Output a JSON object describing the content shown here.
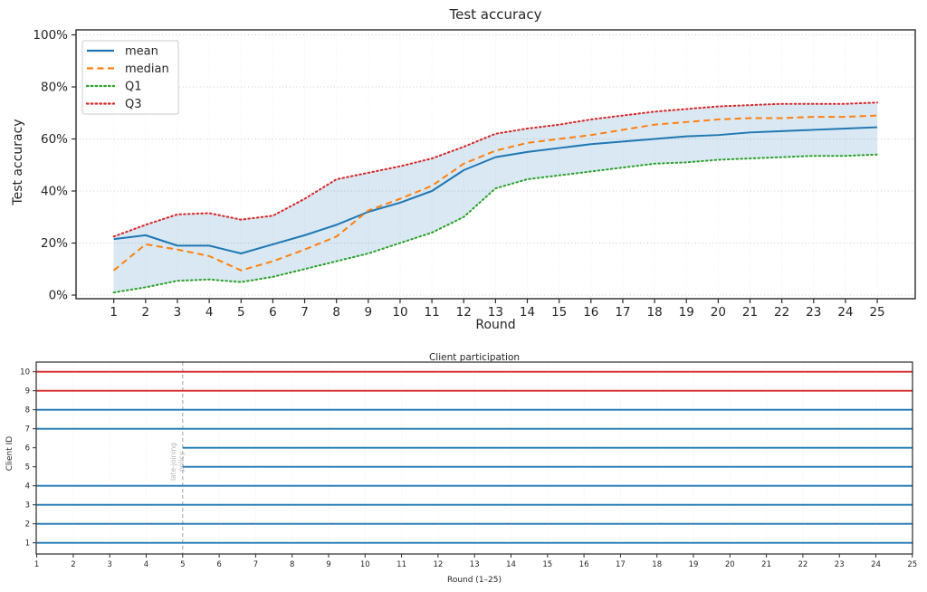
{
  "colors": {
    "mean": "#1f77b4",
    "median": "#ff7f0e",
    "q1": "#2ca02c",
    "q3": "#d62728",
    "band_fill": "#1f77b4",
    "band_opacity": 0.17,
    "client_blue": "#1f77b4",
    "client_red": "#d62728",
    "grid_h": "#c9c9c9",
    "grid_v": "#efeee1",
    "spine": "#2b2b2b",
    "vline": "#aaaaaa",
    "annotation": "#b3b3b3",
    "text": "#262626",
    "legend_border": "#cccccc",
    "legend_bg": "#ffffff"
  },
  "chart_data": [
    {
      "type": "line",
      "title": "Test accuracy",
      "xlabel": "Round",
      "ylabel": "Test accuracy",
      "xlim": [
        1,
        25
      ],
      "ylim": [
        0,
        100
      ],
      "grid": true,
      "legend_position": "upper-left",
      "x": [
        1,
        2,
        3,
        4,
        5,
        6,
        7,
        8,
        9,
        10,
        11,
        12,
        13,
        14,
        15,
        16,
        17,
        18,
        19,
        20,
        21,
        22,
        23,
        24,
        25
      ],
      "yticks": [
        {
          "value": 0,
          "label": "0%"
        },
        {
          "value": 20,
          "label": "20%"
        },
        {
          "value": 40,
          "label": "40%"
        },
        {
          "value": 60,
          "label": "60%"
        },
        {
          "value": 80,
          "label": "80%"
        },
        {
          "value": 100,
          "label": "100%"
        }
      ],
      "band": {
        "upper": "Q3",
        "lower": "Q1"
      },
      "series": [
        {
          "name": "mean",
          "style": "solid",
          "color": "#1f77b4",
          "values": [
            21.5,
            23,
            19,
            19,
            16,
            19.5,
            23,
            27,
            32,
            35.5,
            40,
            48,
            53,
            55,
            56.5,
            58,
            59,
            60,
            61,
            61.5,
            62.5,
            63,
            63.5,
            64,
            64.5
          ]
        },
        {
          "name": "median",
          "style": "dashed",
          "color": "#ff7f0e",
          "values": [
            9.5,
            19.5,
            17.5,
            15,
            9.5,
            13,
            17.5,
            22.5,
            32.5,
            37,
            42,
            50.5,
            55.5,
            58.5,
            60,
            61.5,
            63.5,
            65.5,
            66.5,
            67.5,
            68,
            68,
            68.5,
            68.5,
            69
          ]
        },
        {
          "name": "Q1",
          "style": "dotted",
          "color": "#2ca02c",
          "values": [
            1,
            3,
            5.5,
            6,
            5,
            7,
            10,
            13,
            16,
            20,
            24,
            30,
            41,
            44.5,
            46,
            47.5,
            49,
            50.5,
            51,
            52,
            52.5,
            53,
            53.5,
            53.5,
            54
          ]
        },
        {
          "name": "Q3",
          "style": "dotted",
          "color": "#d62728",
          "values": [
            22.5,
            27,
            31,
            31.5,
            29,
            30.5,
            37,
            44.5,
            47,
            49.5,
            52.5,
            57,
            62,
            64,
            65.5,
            67.5,
            69,
            70.5,
            71.5,
            72.5,
            73,
            73.5,
            73.5,
            73.5,
            74
          ]
        }
      ]
    },
    {
      "type": "line",
      "title": "Client participation",
      "xlabel": "Round (1–25)",
      "ylabel": "Client ID",
      "xlim": [
        1,
        25
      ],
      "xticks": [
        1,
        2,
        3,
        4,
        5,
        6,
        7,
        8,
        9,
        10,
        11,
        12,
        13,
        14,
        15,
        16,
        17,
        18,
        19,
        20,
        21,
        22,
        23,
        24,
        25
      ],
      "yticks": [
        1,
        2,
        3,
        4,
        5,
        6,
        7,
        8,
        9,
        10
      ],
      "clients": [
        {
          "id": 1,
          "start": 1,
          "end": 25,
          "color": "#1f77b4"
        },
        {
          "id": 2,
          "start": 1,
          "end": 25,
          "color": "#1f77b4"
        },
        {
          "id": 3,
          "start": 1,
          "end": 25,
          "color": "#1f77b4"
        },
        {
          "id": 4,
          "start": 1,
          "end": 25,
          "color": "#1f77b4"
        },
        {
          "id": 5,
          "start": 5,
          "end": 25,
          "color": "#1f77b4"
        },
        {
          "id": 6,
          "start": 5,
          "end": 25,
          "color": "#1f77b4"
        },
        {
          "id": 7,
          "start": 1,
          "end": 25,
          "color": "#1f77b4"
        },
        {
          "id": 8,
          "start": 1,
          "end": 25,
          "color": "#1f77b4"
        },
        {
          "id": 9,
          "start": 1,
          "end": 25,
          "color": "#d62728"
        },
        {
          "id": 10,
          "start": 1,
          "end": 25,
          "color": "#d62728"
        }
      ],
      "vline": {
        "x": 5,
        "label_lines": [
          "late-joining",
          "policy"
        ]
      }
    }
  ]
}
